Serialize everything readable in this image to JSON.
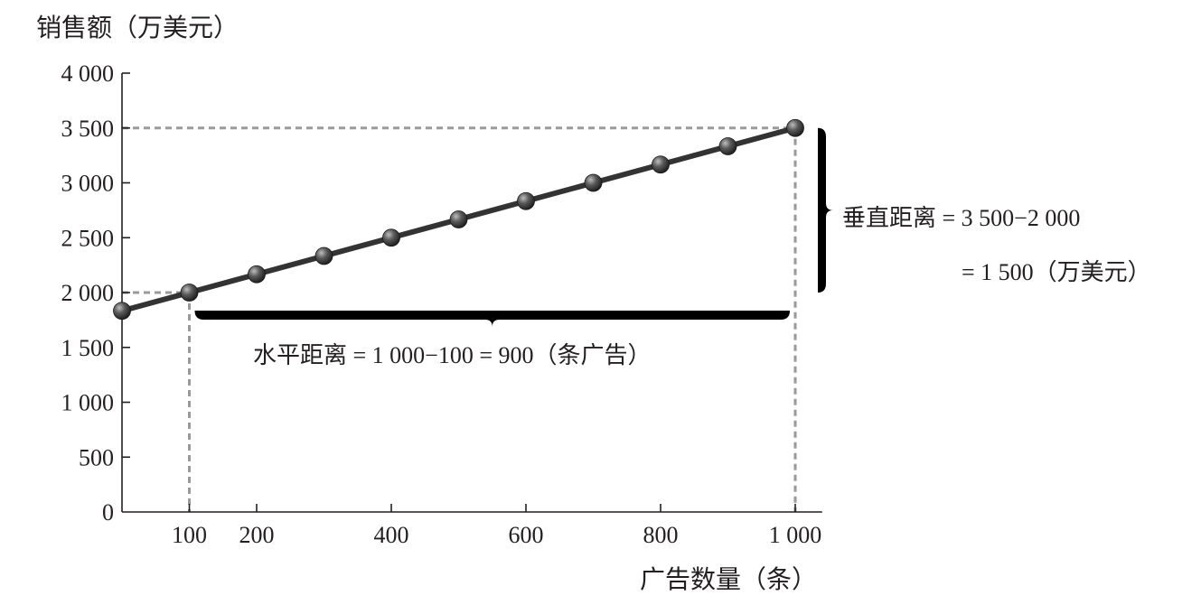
{
  "chart_data": {
    "type": "line",
    "title": "",
    "xlabel": "广告数量（条）",
    "ylabel": "销售额（万美元）",
    "xlim": [
      0,
      1040
    ],
    "ylim": [
      0,
      4000
    ],
    "x_ticks": [
      100,
      200,
      400,
      600,
      800,
      1000
    ],
    "x_tick_labels": [
      "100",
      "200",
      "400",
      "600",
      "800",
      "1 000"
    ],
    "y_ticks": [
      0,
      500,
      1000,
      1500,
      2000,
      2500,
      3000,
      3500,
      4000
    ],
    "y_tick_labels": [
      "0",
      "500",
      "1 000",
      "1 500",
      "2 000",
      "2 500",
      "3 000",
      "3 500",
      "4 000"
    ],
    "grid": false,
    "series": [
      {
        "x": [
          0,
          100,
          200,
          300,
          400,
          500,
          600,
          700,
          800,
          900,
          1000
        ],
        "y": [
          1833.3,
          2000,
          2166.7,
          2333.3,
          2500,
          2666.7,
          2833.3,
          3000,
          3166.7,
          3333.3,
          3500
        ]
      }
    ],
    "reference_points": [
      {
        "x": 100,
        "y": 2000
      },
      {
        "x": 1000,
        "y": 3500
      }
    ],
    "annotations": {
      "vertical_line1": "垂直距离 = 3 500−2 000",
      "vertical_line2": "= 1 500（万美元）",
      "horizontal": "水平距离 = 1 000−100 = 900（条广告）"
    },
    "colors": {
      "line": "#333333",
      "marker": "#4a4a4a",
      "dashed": "#9a9a9a",
      "axis": "#231f20"
    }
  }
}
